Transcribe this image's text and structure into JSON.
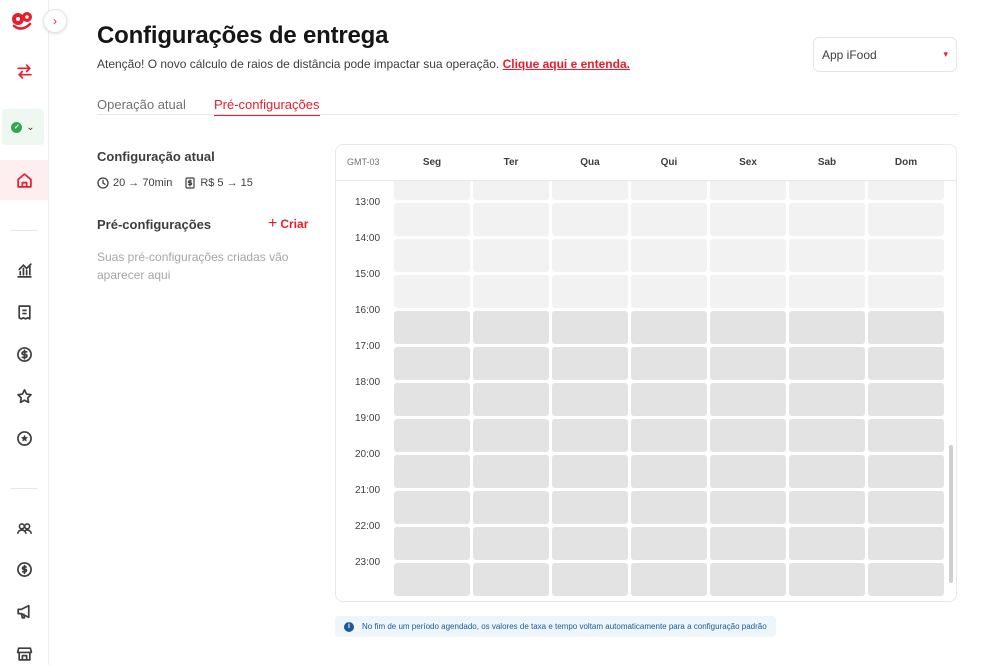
{
  "page": {
    "title": "Configurações de entrega",
    "notice_text": "Atenção! O novo cálculo de raios de distância pode impactar sua operação.",
    "notice_link": "Clique aqui e entenda.",
    "app_select_value": "App iFood"
  },
  "tabs": [
    {
      "label": "Operação atual",
      "active": false
    },
    {
      "label": "Pré-configurações",
      "active": true
    }
  ],
  "current_config": {
    "title": "Configuração atual",
    "time": "20 → 70min",
    "fee": "R$ 5 → 15"
  },
  "preconfigs": {
    "title": "Pré-configurações",
    "create_label": "Criar",
    "empty_text": "Suas pré-configurações criadas vão aparecer aqui"
  },
  "schedule": {
    "timezone": "GMT-03",
    "days": [
      "Seg",
      "Ter",
      "Qua",
      "Qui",
      "Sex",
      "Sab",
      "Dom"
    ],
    "hours": [
      "13:00",
      "14:00",
      "15:00",
      "16:00",
      "17:00",
      "18:00",
      "19:00",
      "20:00",
      "21:00",
      "22:00",
      "23:00"
    ],
    "light_rows": 4,
    "dark_rows": 8
  },
  "info_banner": "No fim de um período agendado, os valores de taxa e tempo voltam automaticamente para a configuração padrão",
  "sidebar": {
    "icons": [
      "logo-icon",
      "swap-icon",
      "status-icon",
      "home-icon",
      "chart-icon",
      "receipt-icon",
      "dollar-icon",
      "star-icon",
      "badge-icon",
      "users-icon",
      "finance-icon",
      "megaphone-icon",
      "store-icon"
    ]
  },
  "colors": {
    "accent": "#ea1d2c",
    "active_bg": "#fdeef0",
    "status_green": "#2fa84f",
    "info_blue": "#1a5c9a"
  }
}
